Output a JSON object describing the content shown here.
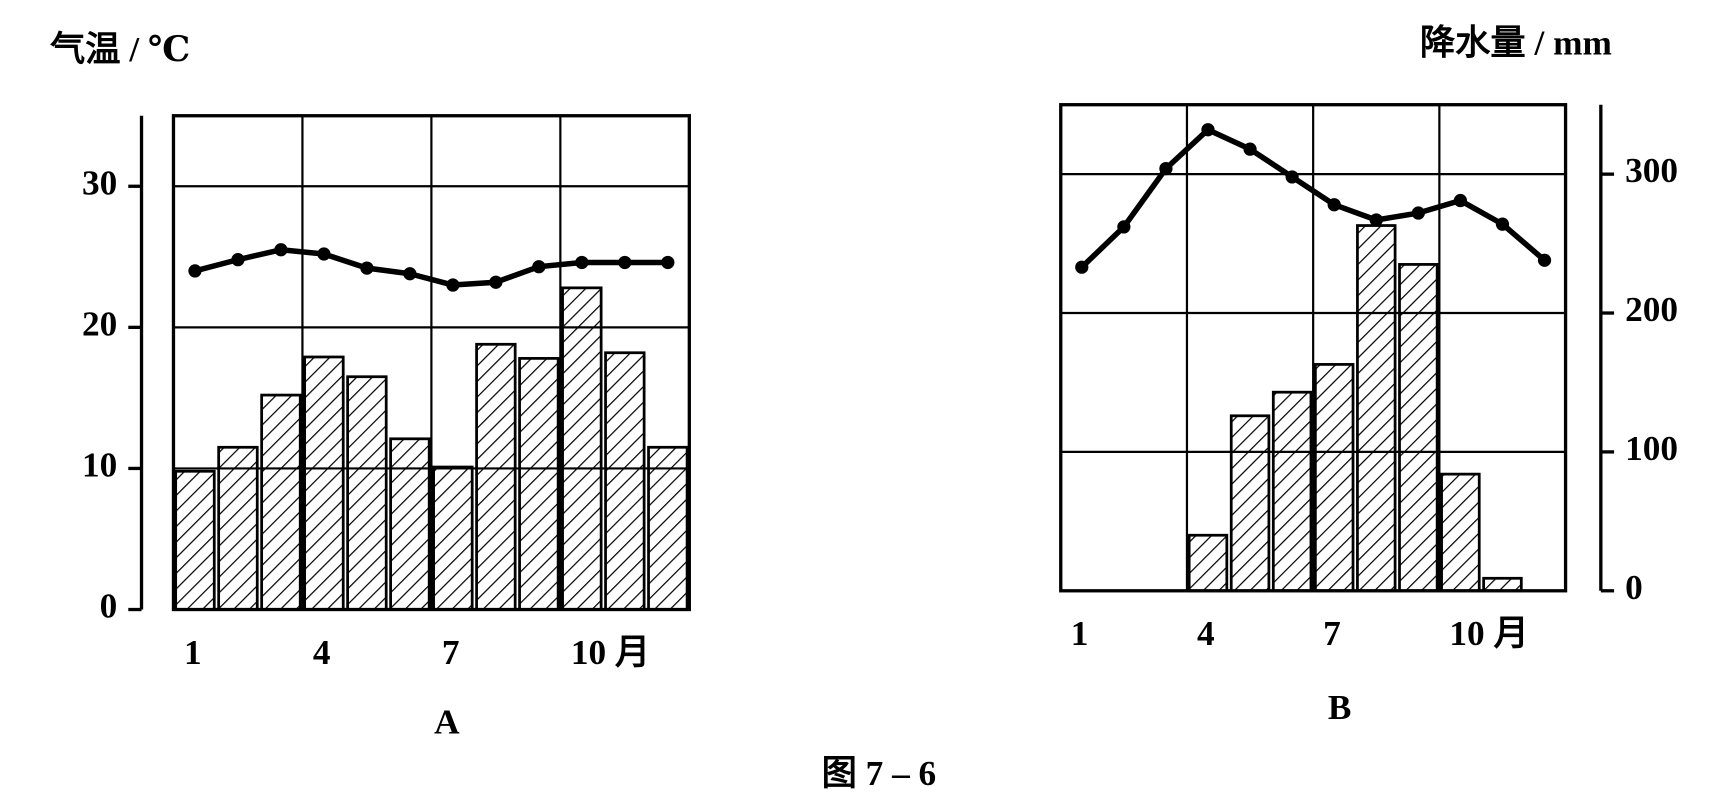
{
  "caption": "图 7 – 6",
  "chart_data": [
    {
      "type": "bar_line",
      "label": "A",
      "y_label": "气温 / ℃",
      "categories": [
        "1",
        null,
        null,
        "4",
        null,
        null,
        "7",
        null,
        null,
        "10 月",
        null,
        null
      ],
      "series": [
        {
          "type": "bar",
          "axis": "y2",
          "color": "#000000",
          "values": [
            98,
            115,
            152,
            179,
            165,
            121,
            101,
            188,
            178,
            228,
            182,
            115
          ]
        },
        {
          "type": "line",
          "color": "#000000",
          "values": [
            24,
            24.8,
            25.5,
            25.2,
            24.2,
            23.8,
            23,
            23.2,
            24.3,
            24.6,
            24.6,
            24.6
          ]
        }
      ],
      "ylim": [
        0,
        35
      ],
      "yticks": [
        0,
        10,
        20,
        30
      ],
      "y2lim": [
        0,
        350
      ],
      "grid": true
    },
    {
      "type": "bar_line",
      "label": "B",
      "y2_label": "降水量 / mm",
      "categories": [
        "1",
        null,
        null,
        "4",
        null,
        null,
        "7",
        null,
        null,
        "10 月",
        null,
        null
      ],
      "series": [
        {
          "type": "bar",
          "axis": "y2",
          "color": "#000000",
          "values": [
            0,
            0,
            0,
            40,
            126,
            143,
            163,
            263,
            235,
            84,
            9,
            0
          ]
        },
        {
          "type": "line",
          "color": "#000000",
          "values": [
            23.3,
            26.2,
            30.4,
            33.2,
            31.8,
            29.8,
            27.8,
            26.7,
            27.2,
            28.1,
            26.4,
            23.8
          ]
        }
      ],
      "ylim": [
        0,
        35
      ],
      "y2lim": [
        0,
        350
      ],
      "y2ticks": [
        0,
        100,
        200,
        300
      ],
      "grid": true
    }
  ]
}
